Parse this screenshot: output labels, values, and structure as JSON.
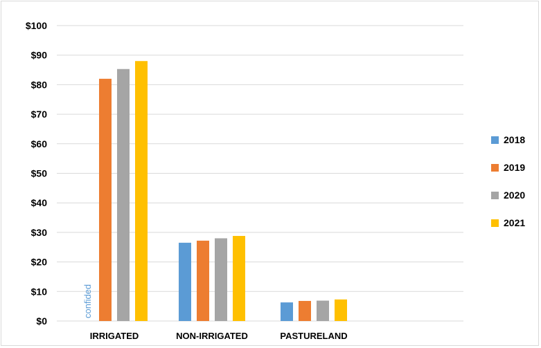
{
  "chart_data": {
    "type": "bar",
    "title": "",
    "xlabel": "",
    "ylabel": "",
    "ylim": [
      0,
      100
    ],
    "ytick_step": 10,
    "ytick_labels": [
      "$0",
      "$10",
      "$20",
      "$30",
      "$40",
      "$50",
      "$60",
      "$70",
      "$80",
      "$90",
      "$100"
    ],
    "grid": true,
    "legend_position": "right",
    "categories": [
      "IRRIGATED",
      "NON-IRRIGATED",
      "PASTURELAND"
    ],
    "series": [
      {
        "name": "2018",
        "color": "#5b9bd5",
        "values": [
          null,
          26.5,
          6.3
        ]
      },
      {
        "name": "2019",
        "color": "#ed7d31",
        "values": [
          82,
          27.2,
          6.8
        ]
      },
      {
        "name": "2020",
        "color": "#a5a5a5",
        "values": [
          85.3,
          28,
          6.9
        ]
      },
      {
        "name": "2021",
        "color": "#ffc000",
        "values": [
          88,
          28.8,
          7.3
        ]
      }
    ],
    "annotations": [
      {
        "text": "confided",
        "category": "IRRIGATED",
        "series": "2018",
        "color": "#5b9bd5"
      }
    ]
  }
}
